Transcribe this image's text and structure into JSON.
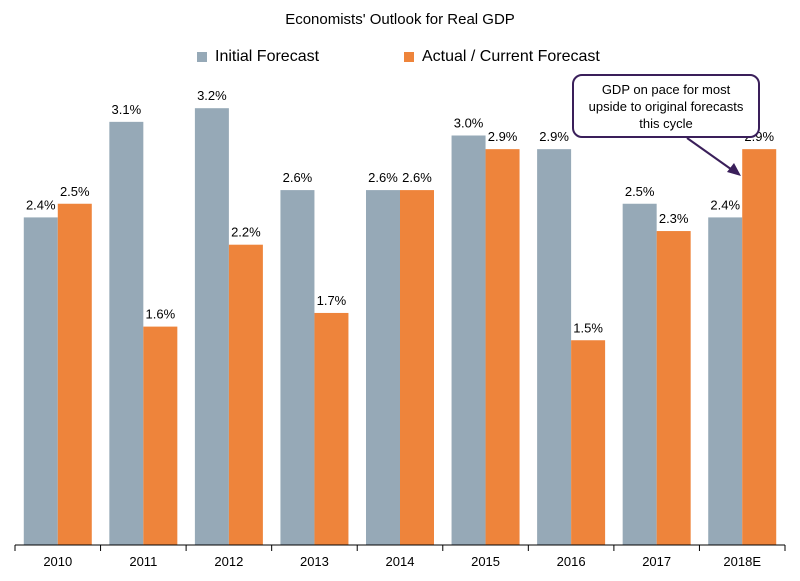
{
  "chart_data": {
    "type": "bar",
    "title": "Economists' Outlook for Real GDP",
    "categories": [
      "2010",
      "2011",
      "2012",
      "2013",
      "2014",
      "2015",
      "2016",
      "2017",
      "2018E"
    ],
    "series": [
      {
        "name": "Initial Forecast",
        "color": "#96a9b7",
        "values": [
          2.4,
          3.1,
          3.2,
          2.6,
          2.6,
          3.0,
          2.9,
          2.5,
          2.4
        ],
        "labels": [
          "2.4%",
          "3.1%",
          "3.2%",
          "2.6%",
          "2.6%",
          "3.0%",
          "2.9%",
          "2.5%",
          "2.4%"
        ]
      },
      {
        "name": "Actual / Current Forecast",
        "color": "#ee843b",
        "values": [
          2.5,
          1.6,
          2.2,
          1.7,
          2.6,
          2.9,
          1.5,
          2.3,
          2.9
        ],
        "labels": [
          "2.5%",
          "1.6%",
          "2.2%",
          "1.7%",
          "2.6%",
          "2.9%",
          "1.5%",
          "2.3%",
          "2.9%"
        ]
      }
    ],
    "ylim": [
      0,
      3.5
    ],
    "xlabel": "",
    "ylabel": "",
    "grid": false,
    "legend_position": "top-center",
    "annotation": "GDP on pace for most upside to original forecasts this cycle"
  }
}
